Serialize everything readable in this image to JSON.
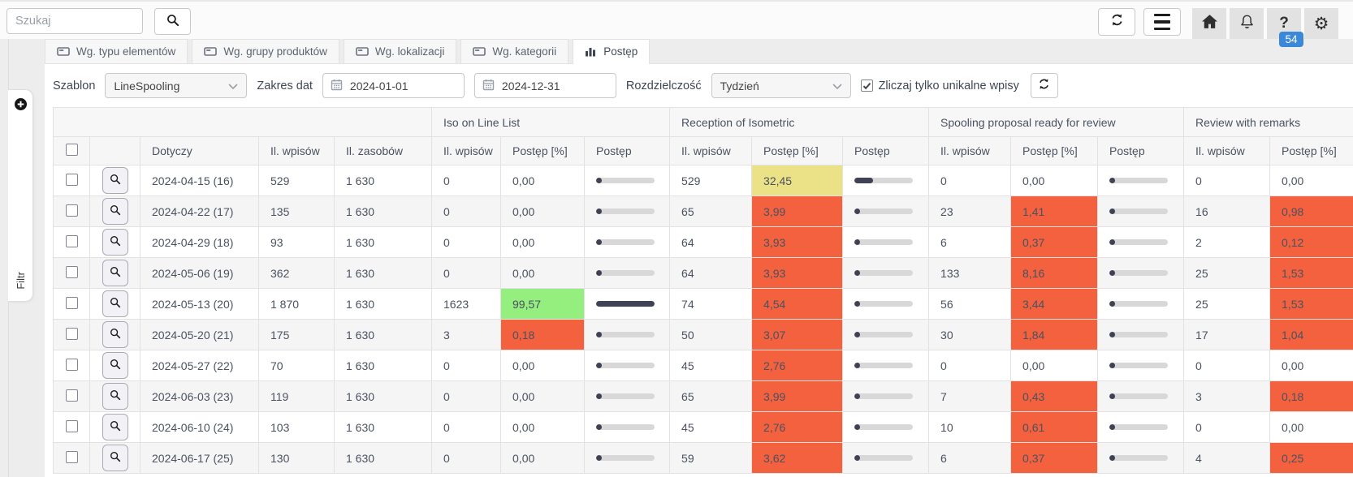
{
  "toolbar": {
    "search_placeholder": "Szukaj",
    "help_badge": "54"
  },
  "icons": {
    "search": "magnifier",
    "refresh": "circular-arrows",
    "menu": "hamburger",
    "home": "house",
    "bell": "bell",
    "help": "?",
    "gear": "⚙",
    "calendar": "calendar-grid",
    "plus": "plus-circle",
    "tab_card": "list-card",
    "tab_chart": "bar-chart"
  },
  "tabs": [
    {
      "label": "Wg. typu elementów",
      "icon": "list-card-icon",
      "active": false
    },
    {
      "label": "Wg. grupy produktów",
      "icon": "list-card-icon",
      "active": false
    },
    {
      "label": "Wg. lokalizacji",
      "icon": "list-card-icon",
      "active": false
    },
    {
      "label": "Wg. kategorii",
      "icon": "list-card-icon",
      "active": false
    },
    {
      "label": "Postęp",
      "icon": "bar-chart-icon",
      "active": true
    }
  ],
  "filters": {
    "szablon_label": "Szablon",
    "szablon_value": "LineSpooling",
    "zakres_label": "Zakres dat",
    "date_from": "2024-01-01",
    "date_to": "2024-12-31",
    "rozdzielczosc_label": "Rozdzielczość",
    "rozdzielczosc_value": "Tydzień",
    "checkbox_label": "Zliczaj tylko unikalne wpisy",
    "checkbox_checked": true
  },
  "sidebar": {
    "filter_label": "Filtr"
  },
  "table": {
    "groups": [
      "Iso on Line List",
      "Reception of Isometric",
      "Spooling proposal ready for review",
      "Review with remarks"
    ],
    "base_columns": [
      "Dotyczy",
      "Il. wpisów",
      "Il. zasobów"
    ],
    "group_columns": [
      "Il. wpisów",
      "Postęp [%]",
      "Postęp"
    ],
    "rows": [
      {
        "date": "2024-04-15 (16)",
        "entries": "529",
        "resources": "1 630",
        "groups": [
          {
            "count": "0",
            "pct": "0,00",
            "bg": "none",
            "bar": 0
          },
          {
            "count": "529",
            "pct": "32,45",
            "bg": "yellow",
            "bar": 32.45
          },
          {
            "count": "0",
            "pct": "0,00",
            "bg": "none",
            "bar": 0
          },
          {
            "count": "0",
            "pct": "0,00",
            "bg": "none",
            "bar": 0
          }
        ]
      },
      {
        "date": "2024-04-22 (17)",
        "entries": "135",
        "resources": "1 630",
        "groups": [
          {
            "count": "0",
            "pct": "0,00",
            "bg": "none",
            "bar": 0
          },
          {
            "count": "65",
            "pct": "3,99",
            "bg": "red",
            "bar": 3.99
          },
          {
            "count": "23",
            "pct": "1,41",
            "bg": "red",
            "bar": 1.41
          },
          {
            "count": "16",
            "pct": "0,98",
            "bg": "red",
            "bar": 0.98
          }
        ]
      },
      {
        "date": "2024-04-29 (18)",
        "entries": "93",
        "resources": "1 630",
        "groups": [
          {
            "count": "0",
            "pct": "0,00",
            "bg": "none",
            "bar": 0
          },
          {
            "count": "64",
            "pct": "3,93",
            "bg": "red",
            "bar": 3.93
          },
          {
            "count": "6",
            "pct": "0,37",
            "bg": "red",
            "bar": 0.37
          },
          {
            "count": "2",
            "pct": "0,12",
            "bg": "red",
            "bar": 0.12
          }
        ]
      },
      {
        "date": "2024-05-06 (19)",
        "entries": "362",
        "resources": "1 630",
        "groups": [
          {
            "count": "0",
            "pct": "0,00",
            "bg": "none",
            "bar": 0
          },
          {
            "count": "64",
            "pct": "3,93",
            "bg": "red",
            "bar": 3.93
          },
          {
            "count": "133",
            "pct": "8,16",
            "bg": "red",
            "bar": 8.16
          },
          {
            "count": "25",
            "pct": "1,53",
            "bg": "red",
            "bar": 1.53
          }
        ]
      },
      {
        "date": "2024-05-13 (20)",
        "entries": "1 870",
        "resources": "1 630",
        "groups": [
          {
            "count": "1623",
            "pct": "99,57",
            "bg": "green",
            "bar": 99.57
          },
          {
            "count": "74",
            "pct": "4,54",
            "bg": "red",
            "bar": 4.54
          },
          {
            "count": "56",
            "pct": "3,44",
            "bg": "red",
            "bar": 3.44
          },
          {
            "count": "25",
            "pct": "1,53",
            "bg": "red",
            "bar": 1.53
          }
        ]
      },
      {
        "date": "2024-05-20 (21)",
        "entries": "175",
        "resources": "1 630",
        "groups": [
          {
            "count": "3",
            "pct": "0,18",
            "bg": "red",
            "bar": 0.18
          },
          {
            "count": "50",
            "pct": "3,07",
            "bg": "red",
            "bar": 3.07
          },
          {
            "count": "30",
            "pct": "1,84",
            "bg": "red",
            "bar": 1.84
          },
          {
            "count": "17",
            "pct": "1,04",
            "bg": "red",
            "bar": 1.04
          }
        ]
      },
      {
        "date": "2024-05-27 (22)",
        "entries": "70",
        "resources": "1 630",
        "groups": [
          {
            "count": "0",
            "pct": "0,00",
            "bg": "none",
            "bar": 0
          },
          {
            "count": "45",
            "pct": "2,76",
            "bg": "red",
            "bar": 2.76
          },
          {
            "count": "0",
            "pct": "0,00",
            "bg": "none",
            "bar": 0
          },
          {
            "count": "0",
            "pct": "0,00",
            "bg": "none",
            "bar": 0
          }
        ]
      },
      {
        "date": "2024-06-03 (23)",
        "entries": "119",
        "resources": "1 630",
        "groups": [
          {
            "count": "0",
            "pct": "0,00",
            "bg": "none",
            "bar": 0
          },
          {
            "count": "65",
            "pct": "3,99",
            "bg": "red",
            "bar": 3.99
          },
          {
            "count": "7",
            "pct": "0,43",
            "bg": "red",
            "bar": 0.43
          },
          {
            "count": "3",
            "pct": "0,18",
            "bg": "red",
            "bar": 0.18
          }
        ]
      },
      {
        "date": "2024-06-10 (24)",
        "entries": "103",
        "resources": "1 630",
        "groups": [
          {
            "count": "0",
            "pct": "0,00",
            "bg": "none",
            "bar": 0
          },
          {
            "count": "45",
            "pct": "2,76",
            "bg": "red",
            "bar": 2.76
          },
          {
            "count": "10",
            "pct": "0,61",
            "bg": "red",
            "bar": 0.61
          },
          {
            "count": "0",
            "pct": "0,00",
            "bg": "none",
            "bar": 0
          }
        ]
      },
      {
        "date": "2024-06-17 (25)",
        "entries": "130",
        "resources": "1 630",
        "groups": [
          {
            "count": "0",
            "pct": "0,00",
            "bg": "none",
            "bar": 0
          },
          {
            "count": "59",
            "pct": "3,62",
            "bg": "red",
            "bar": 3.62
          },
          {
            "count": "6",
            "pct": "0,37",
            "bg": "red",
            "bar": 0.37
          },
          {
            "count": "4",
            "pct": "0,25",
            "bg": "red",
            "bar": 0.25
          }
        ]
      }
    ]
  },
  "colors": {
    "red": "#f4613e",
    "yellow": "#ebe187",
    "green": "#94ef7e",
    "bar_fill": "#3f4254",
    "bar_track": "#d8d8d8",
    "badge_blue": "#3b87d8"
  }
}
